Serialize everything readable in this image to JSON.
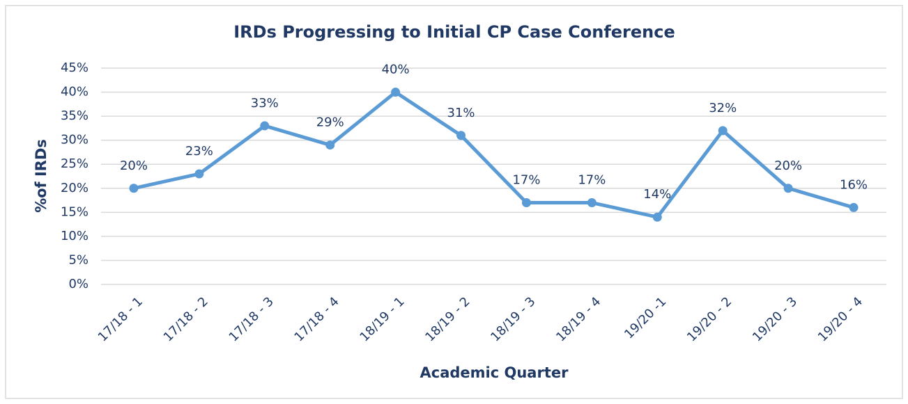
{
  "chart_data": {
    "type": "line",
    "title": "IRDs Progressing to Initial CP Case Conference",
    "x_label": "Academic Quarter",
    "y_label": "%of IRDs",
    "categories": [
      "17/18 - 1",
      "17/18 - 2",
      "17/18 - 3",
      "17/18 - 4",
      "18/19 - 1",
      "18/19 - 2",
      "18/19 - 3",
      "18/19 - 4",
      "19/20 -1",
      "19/20 - 2",
      "19/20 - 3",
      "19/20 - 4"
    ],
    "values": [
      20,
      23,
      33,
      29,
      40,
      31,
      17,
      17,
      14,
      32,
      20,
      16
    ],
    "value_labels": [
      "20%",
      "23%",
      "33%",
      "29%",
      "40%",
      "31%",
      "17%",
      "17%",
      "14%",
      "32%",
      "20%",
      "16%"
    ],
    "color": "#5b9bd5",
    "ylim": [
      0,
      45
    ],
    "yticks": [
      {
        "value": 0,
        "label": "0%"
      },
      {
        "value": 5,
        "label": "5%"
      },
      {
        "value": 10,
        "label": "10%"
      },
      {
        "value": 15,
        "label": "15%"
      },
      {
        "value": 20,
        "label": "20%"
      },
      {
        "value": 25,
        "label": "25%"
      },
      {
        "value": 30,
        "label": "30%"
      },
      {
        "value": 35,
        "label": "35%"
      },
      {
        "value": 40,
        "label": "40%"
      },
      {
        "value": 45,
        "label": "45%"
      }
    ],
    "grid": true
  }
}
